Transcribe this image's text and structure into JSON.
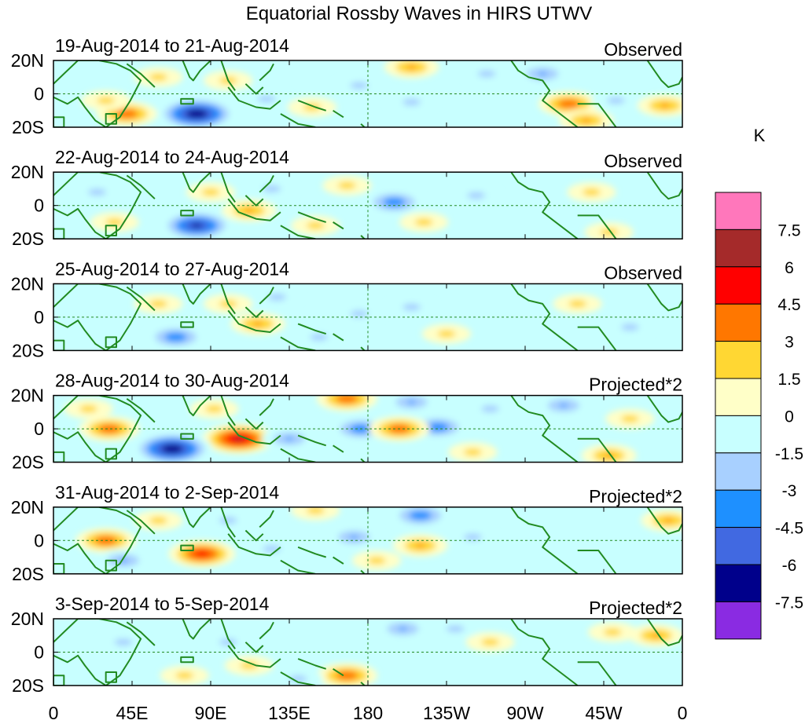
{
  "chart_data": {
    "type": "heatmap",
    "title": "Equatorial Rossby Waves in HIRS UTWV",
    "x_tick_labels": [
      "0",
      "45E",
      "90E",
      "135E",
      "180",
      "135W",
      "90W",
      "45W",
      "0"
    ],
    "x_range_deg": [
      0,
      360
    ],
    "y_tick_labels": [
      "20N",
      "0",
      "20S"
    ],
    "y_range_deg": [
      -20,
      20
    ],
    "colorbar": {
      "unit": "K",
      "levels": [
        "7.5",
        "6",
        "4.5",
        "3",
        "1.5",
        "0",
        "-1.5",
        "-3",
        "-4.5",
        "-6",
        "-7.5"
      ],
      "colors": [
        "#ff77bb",
        "#a52a2a",
        "#ff0000",
        "#ff7700",
        "#ffd733",
        "#ffffc8",
        "#c8ffff",
        "#a8d0ff",
        "#1e90ff",
        "#4169e1",
        "#00008b",
        "#8a2be2"
      ]
    },
    "panels": [
      {
        "date_range": "19-Aug-2014 to 21-Aug-2014",
        "kind": "Observed",
        "blobs": [
          {
            "lon": 82,
            "lat": -12,
            "value": -7
          },
          {
            "lon": 42,
            "lat": -12,
            "value": 4
          },
          {
            "lon": 30,
            "lat": -4,
            "value": 2
          },
          {
            "lon": 100,
            "lat": 8,
            "value": 2
          },
          {
            "lon": 122,
            "lat": -3,
            "value": -2
          },
          {
            "lon": 148,
            "lat": -8,
            "value": 2
          },
          {
            "lon": 175,
            "lat": 5,
            "value": -2
          },
          {
            "lon": 205,
            "lat": 16,
            "value": 3
          },
          {
            "lon": 205,
            "lat": -5,
            "value": -2
          },
          {
            "lon": 248,
            "lat": 12,
            "value": -2
          },
          {
            "lon": 295,
            "lat": -6,
            "value": 4
          },
          {
            "lon": 322,
            "lat": -4,
            "value": -2
          },
          {
            "lon": 350,
            "lat": -7,
            "value": 3
          },
          {
            "lon": 280,
            "lat": 12,
            "value": -3
          },
          {
            "lon": 305,
            "lat": -16,
            "value": 3
          },
          {
            "lon": 60,
            "lat": 10,
            "value": 2
          }
        ]
      },
      {
        "date_range": "22-Aug-2014 to 24-Aug-2014",
        "kind": "Observed",
        "blobs": [
          {
            "lon": 82,
            "lat": -12,
            "value": -6
          },
          {
            "lon": 112,
            "lat": -3,
            "value": 3
          },
          {
            "lon": 90,
            "lat": 8,
            "value": 2
          },
          {
            "lon": 195,
            "lat": 2,
            "value": -4
          },
          {
            "lon": 168,
            "lat": 12,
            "value": 2
          },
          {
            "lon": 242,
            "lat": 6,
            "value": -2
          },
          {
            "lon": 212,
            "lat": -10,
            "value": 2
          },
          {
            "lon": 308,
            "lat": 8,
            "value": 2
          },
          {
            "lon": 318,
            "lat": -16,
            "value": 2
          },
          {
            "lon": 125,
            "lat": 10,
            "value": -2
          },
          {
            "lon": 25,
            "lat": 8,
            "value": -2
          },
          {
            "lon": 35,
            "lat": -10,
            "value": 2
          },
          {
            "lon": 150,
            "lat": -12,
            "value": 2
          }
        ]
      },
      {
        "date_range": "25-Aug-2014 to 27-Aug-2014",
        "kind": "Observed",
        "blobs": [
          {
            "lon": 70,
            "lat": -12,
            "value": -4
          },
          {
            "lon": 117,
            "lat": -4,
            "value": 3
          },
          {
            "lon": 100,
            "lat": 8,
            "value": 2
          },
          {
            "lon": 175,
            "lat": 2,
            "value": -2
          },
          {
            "lon": 205,
            "lat": 6,
            "value": -2
          },
          {
            "lon": 128,
            "lat": 12,
            "value": -2
          },
          {
            "lon": 225,
            "lat": -10,
            "value": 2
          },
          {
            "lon": 60,
            "lat": 8,
            "value": 2
          },
          {
            "lon": 152,
            "lat": -12,
            "value": -2
          },
          {
            "lon": 300,
            "lat": 8,
            "value": 2
          },
          {
            "lon": 330,
            "lat": -6,
            "value": -2
          }
        ]
      },
      {
        "date_range": "28-Aug-2014 to 30-Aug-2014",
        "kind": "Projected*2",
        "blobs": [
          {
            "lon": 106,
            "lat": -6,
            "value": 6
          },
          {
            "lon": 68,
            "lat": -12,
            "value": -7
          },
          {
            "lon": 32,
            "lat": 0,
            "value": 4
          },
          {
            "lon": 176,
            "lat": 0,
            "value": -4
          },
          {
            "lon": 168,
            "lat": 18,
            "value": 4
          },
          {
            "lon": 220,
            "lat": 1,
            "value": -4
          },
          {
            "lon": 198,
            "lat": 0,
            "value": 4
          },
          {
            "lon": 205,
            "lat": 16,
            "value": -3
          },
          {
            "lon": 135,
            "lat": -6,
            "value": -3
          },
          {
            "lon": 92,
            "lat": 12,
            "value": 2
          },
          {
            "lon": 250,
            "lat": 12,
            "value": -2
          },
          {
            "lon": 292,
            "lat": 14,
            "value": -3
          },
          {
            "lon": 318,
            "lat": -16,
            "value": 3
          },
          {
            "lon": 330,
            "lat": 6,
            "value": 2
          },
          {
            "lon": 20,
            "lat": 12,
            "value": 2
          },
          {
            "lon": 240,
            "lat": -14,
            "value": 2
          }
        ]
      },
      {
        "date_range": "31-Aug-2014 to 2-Sep-2014",
        "kind": "Projected*2",
        "blobs": [
          {
            "lon": 85,
            "lat": -8,
            "value": 5
          },
          {
            "lon": 30,
            "lat": 0,
            "value": 4
          },
          {
            "lon": 40,
            "lat": -12,
            "value": -3
          },
          {
            "lon": 172,
            "lat": 2,
            "value": -3
          },
          {
            "lon": 210,
            "lat": 15,
            "value": -4
          },
          {
            "lon": 210,
            "lat": -3,
            "value": 3
          },
          {
            "lon": 240,
            "lat": 2,
            "value": -2
          },
          {
            "lon": 185,
            "lat": -12,
            "value": 2
          },
          {
            "lon": 150,
            "lat": 18,
            "value": 2
          },
          {
            "lon": 100,
            "lat": 12,
            "value": -2
          },
          {
            "lon": 352,
            "lat": 12,
            "value": 3
          },
          {
            "lon": 125,
            "lat": -5,
            "value": -2
          },
          {
            "lon": 60,
            "lat": 12,
            "value": 2
          }
        ]
      },
      {
        "date_range": "3-Sep-2014 to 5-Sep-2014",
        "kind": "Projected*2",
        "blobs": [
          {
            "lon": 168,
            "lat": -14,
            "value": 4
          },
          {
            "lon": 200,
            "lat": 14,
            "value": -3
          },
          {
            "lon": 100,
            "lat": 6,
            "value": -2
          },
          {
            "lon": 112,
            "lat": -8,
            "value": 2
          },
          {
            "lon": 40,
            "lat": 6,
            "value": -2
          },
          {
            "lon": 250,
            "lat": 6,
            "value": 2
          },
          {
            "lon": 230,
            "lat": 14,
            "value": -2
          },
          {
            "lon": 320,
            "lat": 12,
            "value": 2
          },
          {
            "lon": 345,
            "lat": 10,
            "value": 3
          },
          {
            "lon": 140,
            "lat": -16,
            "value": -2
          },
          {
            "lon": 75,
            "lat": -14,
            "value": 2
          }
        ]
      }
    ]
  }
}
